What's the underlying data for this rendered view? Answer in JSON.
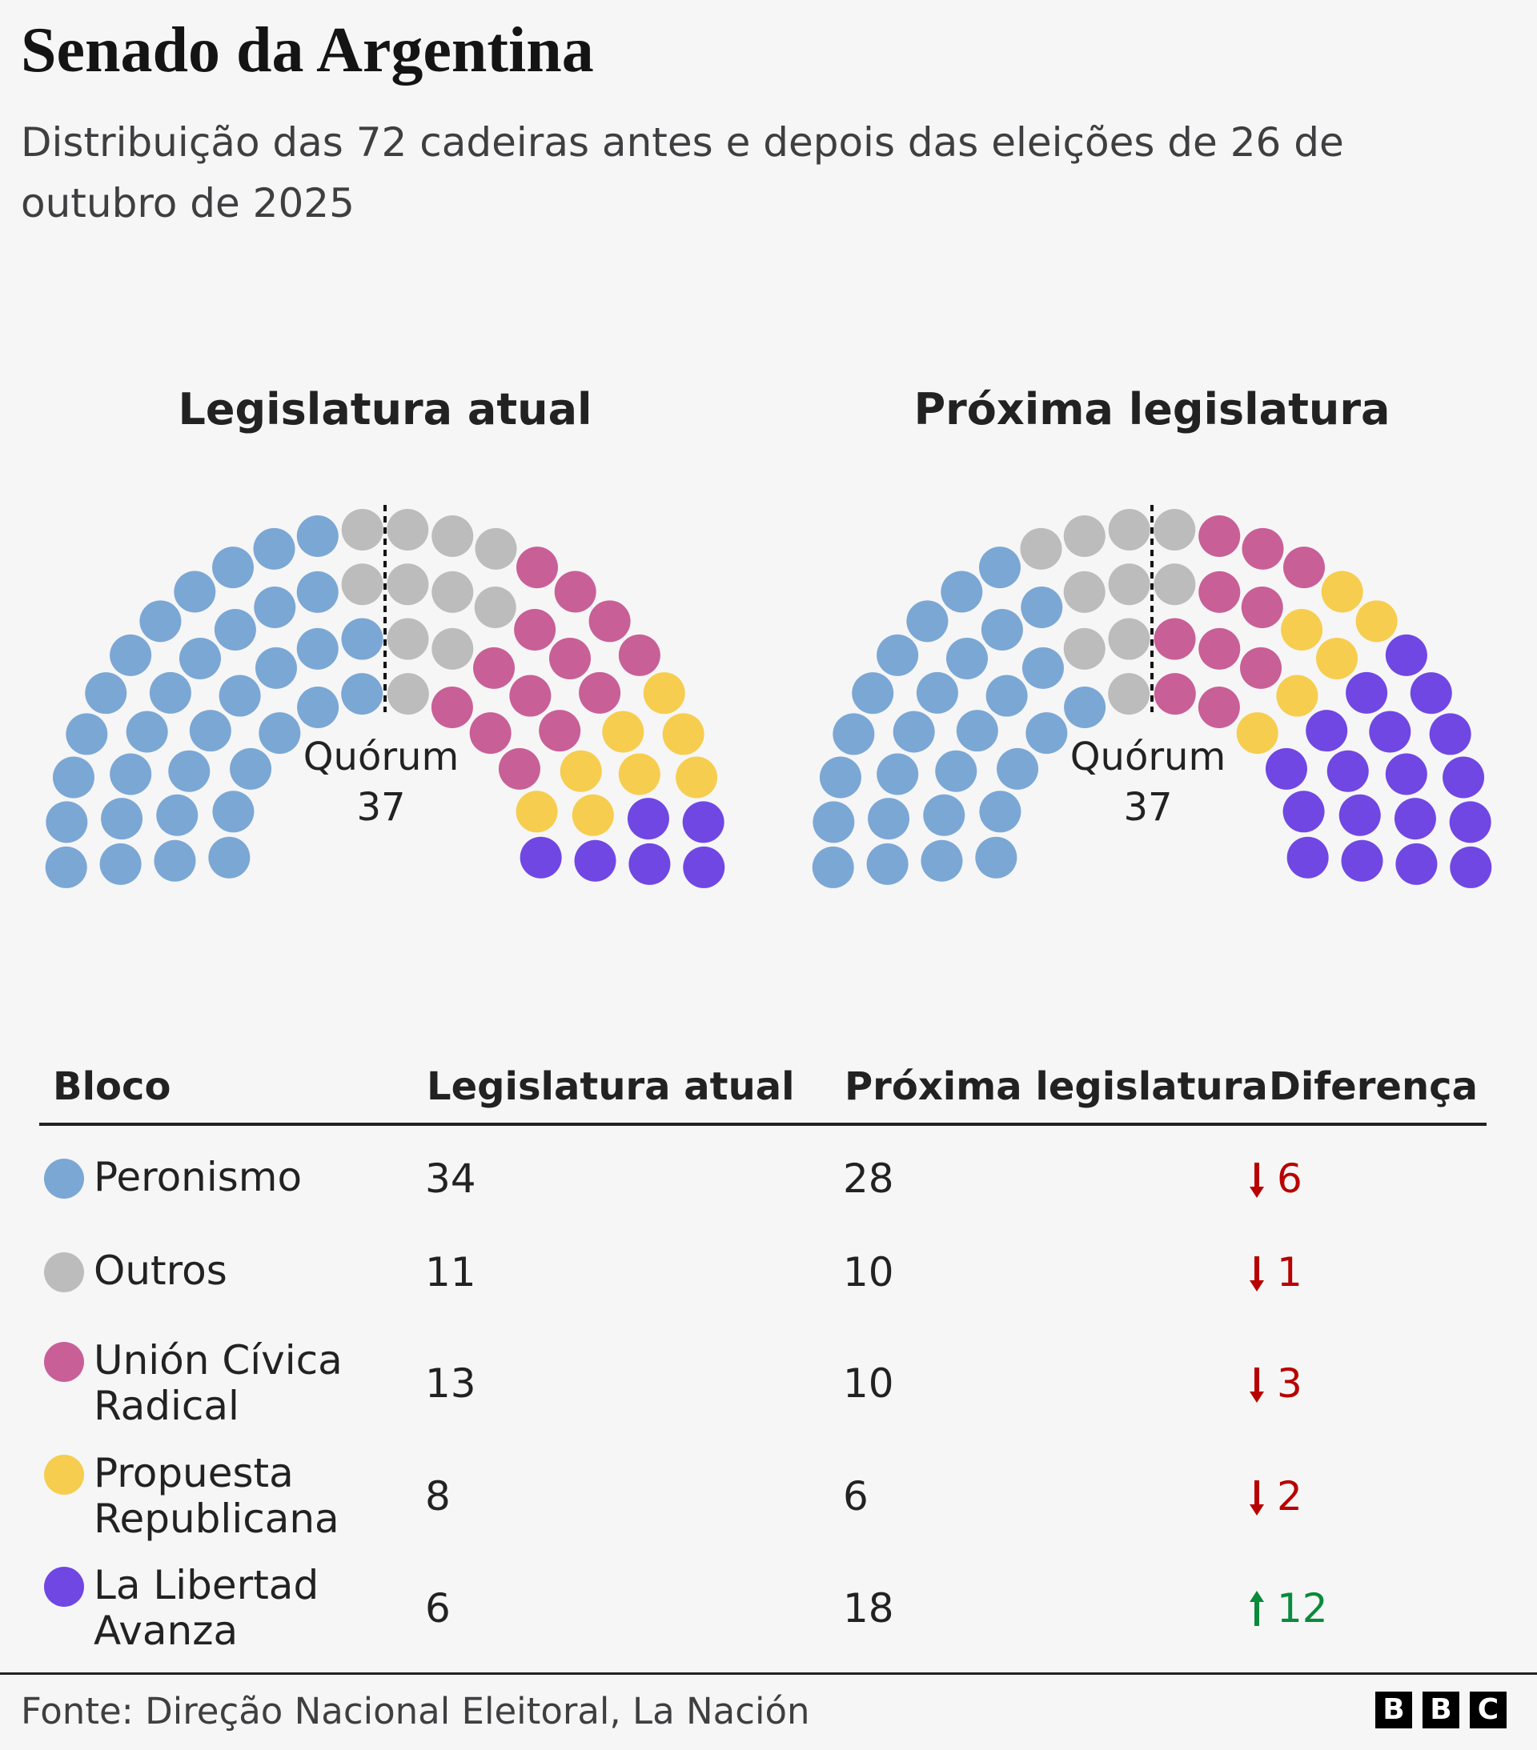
{
  "header": {
    "title": "Senado da Argentina",
    "subtitle": "Distribuição das 72 cadeiras antes e depois das eleições de 26 de outubro de 2025"
  },
  "chart_data": [
    {
      "type": "parliament",
      "title": "Legislatura atual",
      "categories": [
        "Peronismo",
        "Outros",
        "Unión Cívica Radical",
        "Propuesta Republicana",
        "La Libertad Avanza"
      ],
      "colors": [
        "#7ba7d5",
        "#bcbcbc",
        "#c95f97",
        "#f6cd4e",
        "#7047e3"
      ],
      "values": [
        34,
        11,
        13,
        8,
        6
      ],
      "annotation": "Quórum",
      "quorum": 37
    },
    {
      "type": "parliament",
      "title": "Próxima legislatura",
      "values": [
        28,
        10,
        10,
        6,
        18
      ],
      "annotation": "Quórum",
      "quorum": 37
    }
  ],
  "table": {
    "headers": [
      "Bloco",
      "Legislatura atual",
      "Próxima legislatura",
      "Diferença"
    ],
    "rows": [
      {
        "change": 6,
        "direction": "down"
      },
      {
        "change": 1,
        "direction": "down"
      },
      {
        "change": 3,
        "direction": "down"
      },
      {
        "change": 2,
        "direction": "down"
      },
      {
        "change": 12,
        "direction": "up"
      }
    ]
  },
  "footer": {
    "source": "Fonte: Direção Nacional Eleitoral, La Nación",
    "logo": [
      "B",
      "B",
      "C"
    ]
  }
}
